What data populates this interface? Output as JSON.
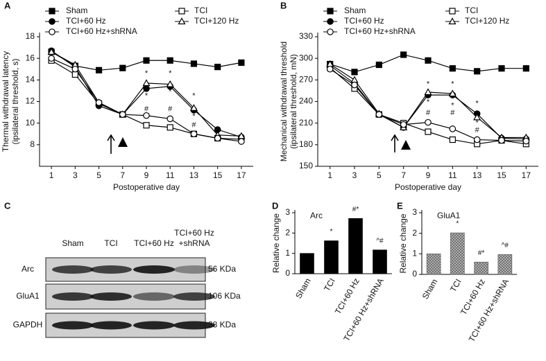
{
  "chart_data": [
    {
      "type": "line",
      "panel_label": "A",
      "xlabel": "Postoperative day",
      "ylabel": [
        "Thermal withdrawal latency",
        "(ipsilateral threshold, s)"
      ],
      "x": [
        1,
        3,
        5,
        7,
        9,
        11,
        13,
        15,
        17
      ],
      "xlim": [
        0,
        18
      ],
      "xticks": [
        1,
        3,
        5,
        7,
        9,
        11,
        13,
        15,
        17
      ],
      "ylim": [
        6,
        18
      ],
      "yticks": [
        8,
        10,
        12,
        14,
        16,
        18
      ],
      "series": [
        {
          "name": "Sham",
          "marker": "square-filled",
          "color": "#000000",
          "values": [
            16.6,
            15.3,
            14.9,
            15.1,
            15.8,
            15.8,
            15.5,
            15.2,
            15.6
          ]
        },
        {
          "name": "TCI",
          "marker": "square-open",
          "color": "#000000",
          "values": [
            15.8,
            14.5,
            11.8,
            10.8,
            9.8,
            9.6,
            9.0,
            8.6,
            8.5
          ]
        },
        {
          "name": "TCI+60 Hz",
          "marker": "circle-filled",
          "color": "#000000",
          "values": [
            16.7,
            15.2,
            11.6,
            10.8,
            13.2,
            13.4,
            11.2,
            9.4,
            8.7
          ]
        },
        {
          "name": "TCI+120 Hz",
          "marker": "triangle-open",
          "color": "#000000",
          "values": [
            16.6,
            15.4,
            11.9,
            10.8,
            13.7,
            13.6,
            11.4,
            8.9,
            8.8
          ]
        },
        {
          "name": "TCI+60 Hz+shRNA",
          "marker": "circle-open",
          "color": "#000000",
          "values": [
            16.0,
            15.0,
            11.9,
            10.8,
            10.7,
            10.4,
            9.0,
            8.6,
            8.3
          ]
        }
      ],
      "annotations": [
        {
          "text": "*",
          "x": 9,
          "y": 14.6
        },
        {
          "text": "*",
          "x": 9,
          "y": 12.5
        },
        {
          "text": "#",
          "x": 9,
          "y": 11.3
        },
        {
          "text": "*",
          "x": 11,
          "y": 14.6
        },
        {
          "text": "*",
          "x": 11,
          "y": 12.9
        },
        {
          "text": "#",
          "x": 11,
          "y": 11.3
        },
        {
          "text": "*",
          "x": 13,
          "y": 12.5
        },
        {
          "text": "*",
          "x": 13,
          "y": 10.6
        },
        {
          "text": "#",
          "x": 13,
          "y": 9.8
        }
      ]
    },
    {
      "type": "line",
      "panel_label": "B",
      "xlabel": "Postoperative day",
      "ylabel": [
        "Mechanical withdrawal threshold",
        "(ipsilateral threshold, mN)"
      ],
      "x": [
        1,
        3,
        5,
        7,
        9,
        11,
        13,
        15,
        17
      ],
      "xlim": [
        0,
        18
      ],
      "xticks": [
        1,
        3,
        5,
        7,
        9,
        11,
        13,
        15,
        17
      ],
      "ylim": [
        150,
        330
      ],
      "yticks": [
        150,
        180,
        210,
        240,
        270,
        300,
        330
      ],
      "series": [
        {
          "name": "Sham",
          "marker": "square-filled",
          "color": "#000000",
          "values": [
            292,
            281,
            291,
            305,
            297,
            286,
            282,
            286,
            286
          ]
        },
        {
          "name": "TCI",
          "marker": "square-open",
          "color": "#000000",
          "values": [
            287,
            258,
            222,
            210,
            198,
            187,
            181,
            186,
            181
          ]
        },
        {
          "name": "TCI+60 Hz",
          "marker": "circle-filled",
          "color": "#000000",
          "values": [
            290,
            265,
            222,
            204,
            249,
            249,
            223,
            189,
            188
          ]
        },
        {
          "name": "TCI+120 Hz",
          "marker": "triangle-open",
          "color": "#000000",
          "values": [
            292,
            270,
            223,
            204,
            253,
            251,
            218,
            190,
            190
          ]
        },
        {
          "name": "TCI+60 Hz+shRNA",
          "marker": "circle-open",
          "color": "#000000",
          "values": [
            285,
            263,
            222,
            208,
            211,
            202,
            187,
            186,
            185
          ]
        }
      ],
      "annotations": [
        {
          "text": "*",
          "x": 9,
          "y": 264
        },
        {
          "text": "*",
          "x": 9,
          "y": 239
        },
        {
          "text": "#",
          "x": 9,
          "y": 224
        },
        {
          "text": "*",
          "x": 11,
          "y": 264
        },
        {
          "text": "*",
          "x": 11,
          "y": 234
        },
        {
          "text": "#",
          "x": 11,
          "y": 224
        },
        {
          "text": "*",
          "x": 13,
          "y": 237
        },
        {
          "text": "*",
          "x": 13,
          "y": 210
        },
        {
          "text": "#",
          "x": 13,
          "y": 200
        }
      ]
    },
    {
      "type": "bar",
      "panel_label": "D",
      "subtitle": "Arc",
      "ylabel": "Relative change",
      "categories": [
        "Sham",
        "TCI",
        "TCI+60 Hz",
        "TCI+60 Hz+shRNA"
      ],
      "values": [
        1,
        1.62,
        2.72,
        1.17
      ],
      "annotations": [
        null,
        "*",
        "#*",
        "^#"
      ],
      "color": "#000000",
      "pattern": "solid",
      "ylim": [
        0,
        3
      ],
      "yticks": [
        0,
        1,
        2,
        3
      ]
    },
    {
      "type": "bar",
      "panel_label": "E",
      "subtitle": "GluA1",
      "ylabel": "Relative change",
      "categories": [
        "Sham",
        "TCI",
        "TCI+60 Hz",
        "TCI+60 Hz+shRNA"
      ],
      "values": [
        1,
        2.02,
        0.6,
        0.97
      ],
      "annotations": [
        null,
        "*",
        "#*",
        "^#"
      ],
      "color": "#555555",
      "pattern": "crosshatch",
      "ylim": [
        0,
        3
      ],
      "yticks": [
        0,
        1,
        2,
        3
      ]
    }
  ],
  "blot": {
    "panel_label": "C",
    "lanes": [
      [
        "Sham"
      ],
      [
        "TCI"
      ],
      [
        "TCI+60 Hz"
      ],
      [
        "TCI+60 Hz",
        "+shRNA"
      ]
    ],
    "rows": [
      {
        "protein": "Arc",
        "size": "56 KDa"
      },
      {
        "protein": "GluA1",
        "size": "106 KDa"
      },
      {
        "protein": "GAPDH",
        "size": "38 KDa"
      }
    ]
  }
}
